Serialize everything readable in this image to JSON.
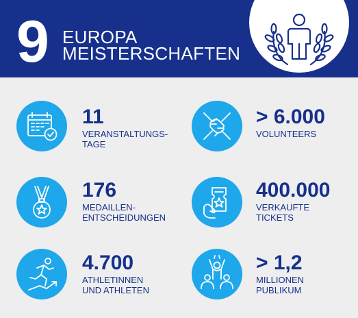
{
  "header": {
    "number": "9",
    "title_line1": "EUROPA",
    "title_line2": "MEISTERSCHAFTEN",
    "icon": "athlete-laurel-icon"
  },
  "colors": {
    "header_bg": "#16308c",
    "accent": "#1ea7ea",
    "text": "#16308c",
    "background": "#eeeeee"
  },
  "stats": [
    {
      "value": "11",
      "label_line1": "VERANSTALTUNGS-",
      "label_line2": "TAGE",
      "icon": "calendar-check-icon"
    },
    {
      "value": "> 6.000",
      "label_line1": "VOLUNTEERS",
      "label_line2": "",
      "icon": "joined-hands-icon"
    },
    {
      "value": "176",
      "label_line1": "MEDAILLEN-",
      "label_line2": "ENTSCHEIDUNGEN",
      "icon": "medal-icon"
    },
    {
      "value": "400.000",
      "label_line1": "VERKAUFTE",
      "label_line2": "TICKETS",
      "icon": "ticket-hand-icon"
    },
    {
      "value": "4.700",
      "label_line1": "ATHLETINNEN",
      "label_line2": "UND ATHLETEN",
      "icon": "runner-icon"
    },
    {
      "value": "> 1,2",
      "label_line1": "MILLIONEN",
      "label_line2": "PUBLIKUM",
      "icon": "cheering-crowd-icon"
    }
  ]
}
